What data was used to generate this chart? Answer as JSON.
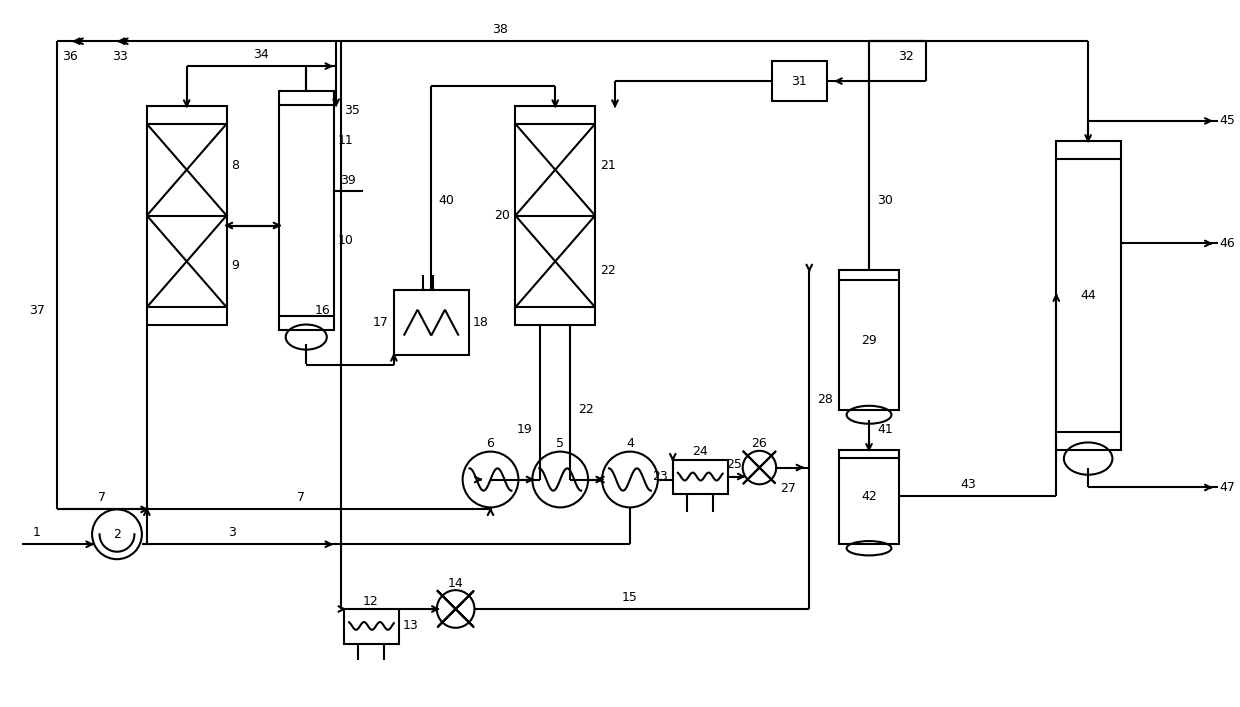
{
  "background": "#ffffff",
  "lc": "#000000",
  "lw": 1.5,
  "figsize": [
    12.4,
    7.07
  ],
  "dpi": 100
}
